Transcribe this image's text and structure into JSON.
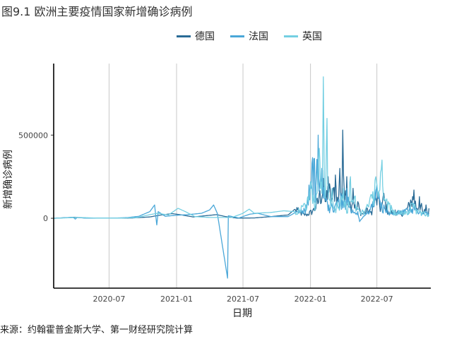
{
  "title": "图9.1 欧洲主要疫情国家新增确诊病例",
  "source": "来源：约翰霍普金斯大学、第一财经研究院计算",
  "colors": {
    "germany": "#2a6b96",
    "france": "#4aa7d8",
    "uk": "#74cfe2"
  },
  "chart_data": {
    "type": "line",
    "title": "图9.1 欧洲主要疫情国家新增确诊病例",
    "xlabel": "日期",
    "ylabel": "新增确诊病例",
    "x_ticks": [
      "2020-07",
      "2021-01",
      "2021-07",
      "2022-01",
      "2022-07"
    ],
    "y_ticks": [
      0,
      500000
    ],
    "y_tick_labels": [
      "0",
      "500000"
    ],
    "xlim": [
      "2020-02-01",
      "2022-11-25"
    ],
    "ylim": [
      -420000,
      930000
    ],
    "grid": "vertical-major",
    "legend_position": "top",
    "series": [
      {
        "name": "德国",
        "color_key": "germany",
        "points": [
          [
            "2020-02-01",
            0
          ],
          [
            "2020-03-28",
            6000
          ],
          [
            "2020-05-01",
            1000
          ],
          [
            "2020-07-01",
            500
          ],
          [
            "2020-09-01",
            1500
          ],
          [
            "2020-10-20",
            8000
          ],
          [
            "2020-11-20",
            20000
          ],
          [
            "2020-12-20",
            28000
          ],
          [
            "2021-01-10",
            22000
          ],
          [
            "2021-02-15",
            8000
          ],
          [
            "2021-03-20",
            15000
          ],
          [
            "2021-04-20",
            22000
          ],
          [
            "2021-05-15",
            10000
          ],
          [
            "2021-06-15",
            1000
          ],
          [
            "2021-08-01",
            2000
          ],
          [
            "2021-09-15",
            10000
          ],
          [
            "2021-11-01",
            20000
          ],
          [
            "2021-11-25",
            65000
          ],
          [
            "2021-12-05",
            40000
          ],
          [
            "2021-12-20",
            25000
          ],
          [
            "2022-01-10",
            60000
          ],
          [
            "2022-01-25",
            150000
          ],
          [
            "2022-02-05",
            240000
          ],
          [
            "2022-02-10",
            100000
          ],
          [
            "2022-02-18",
            250000
          ],
          [
            "2022-02-28",
            120000
          ],
          [
            "2022-03-10",
            260000
          ],
          [
            "2022-03-17",
            100000
          ],
          [
            "2022-03-22",
            300000
          ],
          [
            "2022-03-28",
            150000
          ],
          [
            "2022-03-30",
            530000
          ],
          [
            "2022-04-05",
            100000
          ],
          [
            "2022-04-10",
            250000
          ],
          [
            "2022-04-20",
            80000
          ],
          [
            "2022-04-27",
            180000
          ],
          [
            "2022-05-05",
            50000
          ],
          [
            "2022-05-10",
            100000
          ],
          [
            "2022-05-20",
            30000
          ],
          [
            "2022-06-05",
            60000
          ],
          [
            "2022-06-15",
            40000
          ],
          [
            "2022-06-25",
            120000
          ],
          [
            "2022-07-05",
            150000
          ],
          [
            "2022-07-12",
            60000
          ],
          [
            "2022-07-20",
            150000
          ],
          [
            "2022-08-01",
            40000
          ],
          [
            "2022-08-20",
            50000
          ],
          [
            "2022-09-10",
            30000
          ],
          [
            "2022-10-01",
            110000
          ],
          [
            "2022-10-10",
            170000
          ],
          [
            "2022-10-18",
            60000
          ],
          [
            "2022-10-25",
            130000
          ],
          [
            "2022-11-05",
            30000
          ],
          [
            "2022-11-12",
            80000
          ],
          [
            "2022-11-18",
            20000
          ],
          [
            "2022-11-20",
            60000
          ]
        ]
      },
      {
        "name": "法国",
        "color_key": "france",
        "points": [
          [
            "2020-02-01",
            0
          ],
          [
            "2020-03-25",
            6000
          ],
          [
            "2020-03-31",
            -5000
          ],
          [
            "2020-04-05",
            5000
          ],
          [
            "2020-05-01",
            500
          ],
          [
            "2020-07-01",
            500
          ],
          [
            "2020-08-20",
            4000
          ],
          [
            "2020-09-20",
            12000
          ],
          [
            "2020-10-20",
            40000
          ],
          [
            "2020-11-02",
            80000
          ],
          [
            "2020-11-08",
            -40000
          ],
          [
            "2020-11-12",
            40000
          ],
          [
            "2020-12-01",
            12000
          ],
          [
            "2021-01-01",
            18000
          ],
          [
            "2021-02-01",
            22000
          ],
          [
            "2021-03-10",
            30000
          ],
          [
            "2021-04-01",
            50000
          ],
          [
            "2021-04-12",
            80000
          ],
          [
            "2021-04-22",
            30000
          ],
          [
            "2021-05-20",
            -360000
          ],
          [
            "2021-05-22",
            15000
          ],
          [
            "2021-06-20",
            2000
          ],
          [
            "2021-07-20",
            25000
          ],
          [
            "2021-08-10",
            30000
          ],
          [
            "2021-09-15",
            10000
          ],
          [
            "2021-11-01",
            10000
          ],
          [
            "2021-11-25",
            40000
          ],
          [
            "2021-12-20",
            80000
          ],
          [
            "2021-12-28",
            200000
          ],
          [
            "2022-01-05",
            330000
          ],
          [
            "2022-01-12",
            360000
          ],
          [
            "2022-01-15",
            150000
          ],
          [
            "2022-01-22",
            500000
          ],
          [
            "2022-01-26",
            200000
          ],
          [
            "2022-02-01",
            300000
          ],
          [
            "2022-02-10",
            150000
          ],
          [
            "2022-02-20",
            80000
          ],
          [
            "2022-03-10",
            80000
          ],
          [
            "2022-03-25",
            150000
          ],
          [
            "2022-04-01",
            100000
          ],
          [
            "2022-04-10",
            180000
          ],
          [
            "2022-04-20",
            60000
          ],
          [
            "2022-05-10",
            40000
          ],
          [
            "2022-05-15",
            -20000
          ],
          [
            "2022-06-01",
            30000
          ],
          [
            "2022-06-20",
            100000
          ],
          [
            "2022-07-01",
            200000
          ],
          [
            "2022-07-10",
            100000
          ],
          [
            "2022-07-20",
            80000
          ],
          [
            "2022-08-10",
            30000
          ],
          [
            "2022-09-10",
            50000
          ],
          [
            "2022-10-01",
            60000
          ],
          [
            "2022-10-10",
            90000
          ],
          [
            "2022-10-20",
            40000
          ],
          [
            "2022-11-10",
            40000
          ],
          [
            "2022-11-20",
            30000
          ]
        ]
      },
      {
        "name": "英国",
        "color_key": "uk",
        "points": [
          [
            "2020-02-01",
            0
          ],
          [
            "2020-04-10",
            5000
          ],
          [
            "2020-06-01",
            1000
          ],
          [
            "2020-08-01",
            1000
          ],
          [
            "2020-09-15",
            4000
          ],
          [
            "2020-10-20",
            22000
          ],
          [
            "2020-11-10",
            30000
          ],
          [
            "2020-12-10",
            20000
          ],
          [
            "2021-01-05",
            60000
          ],
          [
            "2021-01-25",
            40000
          ],
          [
            "2021-02-20",
            10000
          ],
          [
            "2021-04-01",
            5000
          ],
          [
            "2021-06-01",
            5000
          ],
          [
            "2021-07-01",
            30000
          ],
          [
            "2021-07-18",
            55000
          ],
          [
            "2021-08-01",
            30000
          ],
          [
            "2021-09-15",
            35000
          ],
          [
            "2021-10-20",
            45000
          ],
          [
            "2021-11-20",
            40000
          ],
          [
            "2021-12-15",
            90000
          ],
          [
            "2021-12-25",
            130000
          ],
          [
            "2022-01-02",
            220000
          ],
          [
            "2022-01-05",
            180000
          ],
          [
            "2022-01-15",
            80000
          ],
          [
            "2022-01-25",
            420000
          ],
          [
            "2022-02-01",
            150000
          ],
          [
            "2022-02-05",
            850000
          ],
          [
            "2022-02-08",
            200000
          ],
          [
            "2022-02-15",
            600000
          ],
          [
            "2022-02-20",
            120000
          ],
          [
            "2022-03-01",
            180000
          ],
          [
            "2022-03-05",
            60000
          ],
          [
            "2022-03-15",
            100000
          ],
          [
            "2022-04-01",
            180000
          ],
          [
            "2022-04-10",
            30000
          ],
          [
            "2022-04-20",
            250000
          ],
          [
            "2022-05-01",
            130000
          ],
          [
            "2022-05-15",
            40000
          ],
          [
            "2022-06-01",
            60000
          ],
          [
            "2022-06-20",
            160000
          ],
          [
            "2022-06-28",
            250000
          ],
          [
            "2022-07-05",
            130000
          ],
          [
            "2022-07-15",
            350000
          ],
          [
            "2022-07-22",
            120000
          ],
          [
            "2022-08-01",
            100000
          ],
          [
            "2022-08-15",
            50000
          ],
          [
            "2022-09-01",
            40000
          ],
          [
            "2022-09-20",
            40000
          ],
          [
            "2022-10-05",
            90000
          ],
          [
            "2022-10-20",
            50000
          ],
          [
            "2022-11-05",
            40000
          ],
          [
            "2022-11-20",
            20000
          ]
        ]
      }
    ]
  }
}
